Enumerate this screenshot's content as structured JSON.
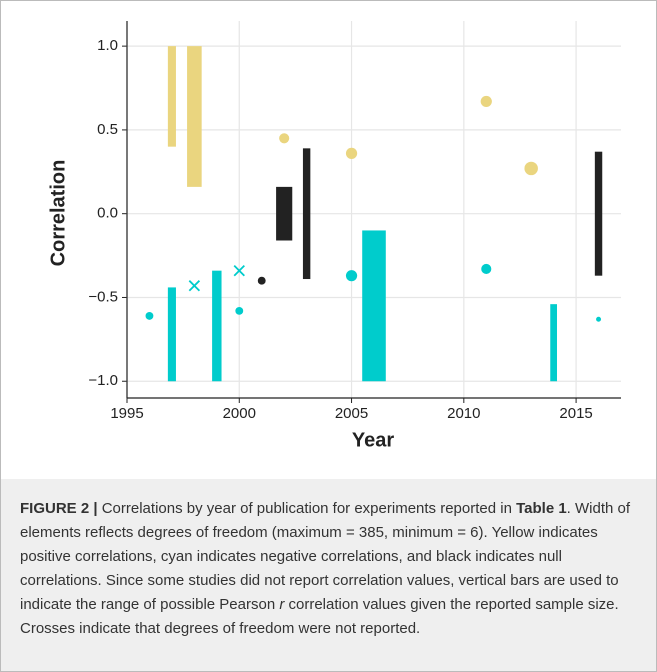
{
  "chart_data": {
    "type": "range_scatter",
    "xlabel": "Year",
    "ylabel": "Correlation",
    "xlim": [
      1995,
      2017
    ],
    "ylim": [
      -1.1,
      1.15
    ],
    "xticks": [
      1995,
      2000,
      2005,
      2010,
      2015
    ],
    "yticks": [
      {
        "value": 1,
        "label": "1.0"
      },
      0.5,
      {
        "value": 0,
        "label": "0.0"
      },
      {
        "value": -0.5,
        "label": "−0.5"
      },
      {
        "value": -1,
        "label": "−1.0"
      }
    ],
    "grid": true,
    "elements": [
      {
        "kind": "dot",
        "x": 1996,
        "y": -0.61,
        "width": 0.35,
        "color": "#00cccc"
      },
      {
        "kind": "bar",
        "x": 1997,
        "low": 0.4,
        "high": 1.0,
        "width": 0.36,
        "color": "#ead57f"
      },
      {
        "kind": "bar",
        "x": 1997,
        "low": -1.0,
        "high": -0.44,
        "width": 0.36,
        "color": "#00cccc"
      },
      {
        "kind": "bar",
        "x": 1998,
        "low": 0.16,
        "high": 1.0,
        "width": 0.65,
        "color": "#ead57f"
      },
      {
        "kind": "cross",
        "x": 1998,
        "y": -0.43,
        "width": 0.45,
        "color": "#00cccc"
      },
      {
        "kind": "bar",
        "x": 1999,
        "low": -1.0,
        "high": -0.34,
        "width": 0.42,
        "color": "#00cccc"
      },
      {
        "kind": "cross",
        "x": 2000,
        "y": -0.34,
        "width": 0.45,
        "color": "#00cccc"
      },
      {
        "kind": "dot",
        "x": 2000,
        "y": -0.58,
        "width": 0.35,
        "color": "#00cccc"
      },
      {
        "kind": "dot",
        "x": 2001,
        "y": -0.4,
        "width": 0.35,
        "color": "#222222"
      },
      {
        "kind": "dot",
        "x": 2002,
        "y": 0.45,
        "width": 0.45,
        "color": "#ead57f"
      },
      {
        "kind": "bar",
        "x": 2002,
        "low": -0.16,
        "high": 0.16,
        "width": 0.72,
        "color": "#222222"
      },
      {
        "kind": "bar",
        "x": 2003,
        "low": -0.39,
        "high": 0.39,
        "width": 0.33,
        "color": "#222222"
      },
      {
        "kind": "dot",
        "x": 2005,
        "y": 0.36,
        "width": 0.5,
        "color": "#ead57f"
      },
      {
        "kind": "dot",
        "x": 2005,
        "y": -0.37,
        "width": 0.5,
        "color": "#00cccc"
      },
      {
        "kind": "bar",
        "x": 2006,
        "low": -1.0,
        "high": -0.1,
        "width": 1.05,
        "color": "#00cccc"
      },
      {
        "kind": "dot",
        "x": 2011,
        "y": 0.67,
        "width": 0.5,
        "color": "#ead57f"
      },
      {
        "kind": "dot",
        "x": 2011,
        "y": -0.33,
        "width": 0.45,
        "color": "#00cccc"
      },
      {
        "kind": "dot",
        "x": 2013,
        "y": 0.27,
        "width": 0.6,
        "color": "#ead57f"
      },
      {
        "kind": "bar",
        "x": 2014,
        "low": -1.0,
        "high": -0.54,
        "width": 0.3,
        "color": "#00cccc"
      },
      {
        "kind": "bar",
        "x": 2016,
        "low": -0.37,
        "high": 0.37,
        "width": 0.33,
        "color": "#222222"
      },
      {
        "kind": "dot",
        "x": 2016,
        "y": -0.63,
        "width": 0.22,
        "color": "#00cccc"
      }
    ]
  },
  "caption": {
    "label": "FIGURE 2 |",
    "parts": [
      " Correlations by year of publication for experiments reported in ",
      "Table 1",
      ". Width of elements reflects degrees of freedom (maximum = 385, minimum = 6). Yellow indicates positive correlations, cyan indicates negative correlations, and black indicates null correlations. Since some studies did not report correlation values, vertical bars are used to indicate the range of possible Pearson ",
      "r",
      " correlation values given the reported sample size. Crosses indicate that degrees of freedom were not reported."
    ]
  }
}
